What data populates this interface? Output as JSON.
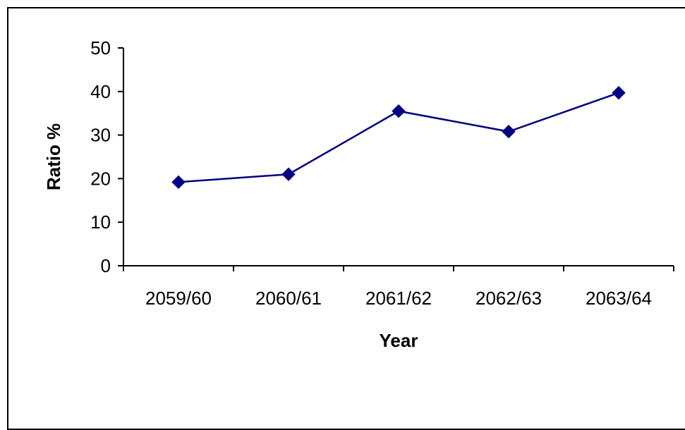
{
  "chart_data": {
    "type": "line",
    "title": "",
    "xlabel": "Year",
    "ylabel": "Ratio %",
    "categories": [
      "2059/60",
      "2060/61",
      "2061/62",
      "2062/63",
      "2063/64"
    ],
    "series": [
      {
        "values": [
          19.2,
          21.0,
          35.5,
          30.8,
          39.7
        ],
        "color": "#000080",
        "marker": "diamond"
      }
    ],
    "ylim": [
      0,
      50
    ],
    "yticks": [
      "0",
      "10",
      "20",
      "30",
      "40",
      "50"
    ],
    "grid": false,
    "legend": "none"
  }
}
